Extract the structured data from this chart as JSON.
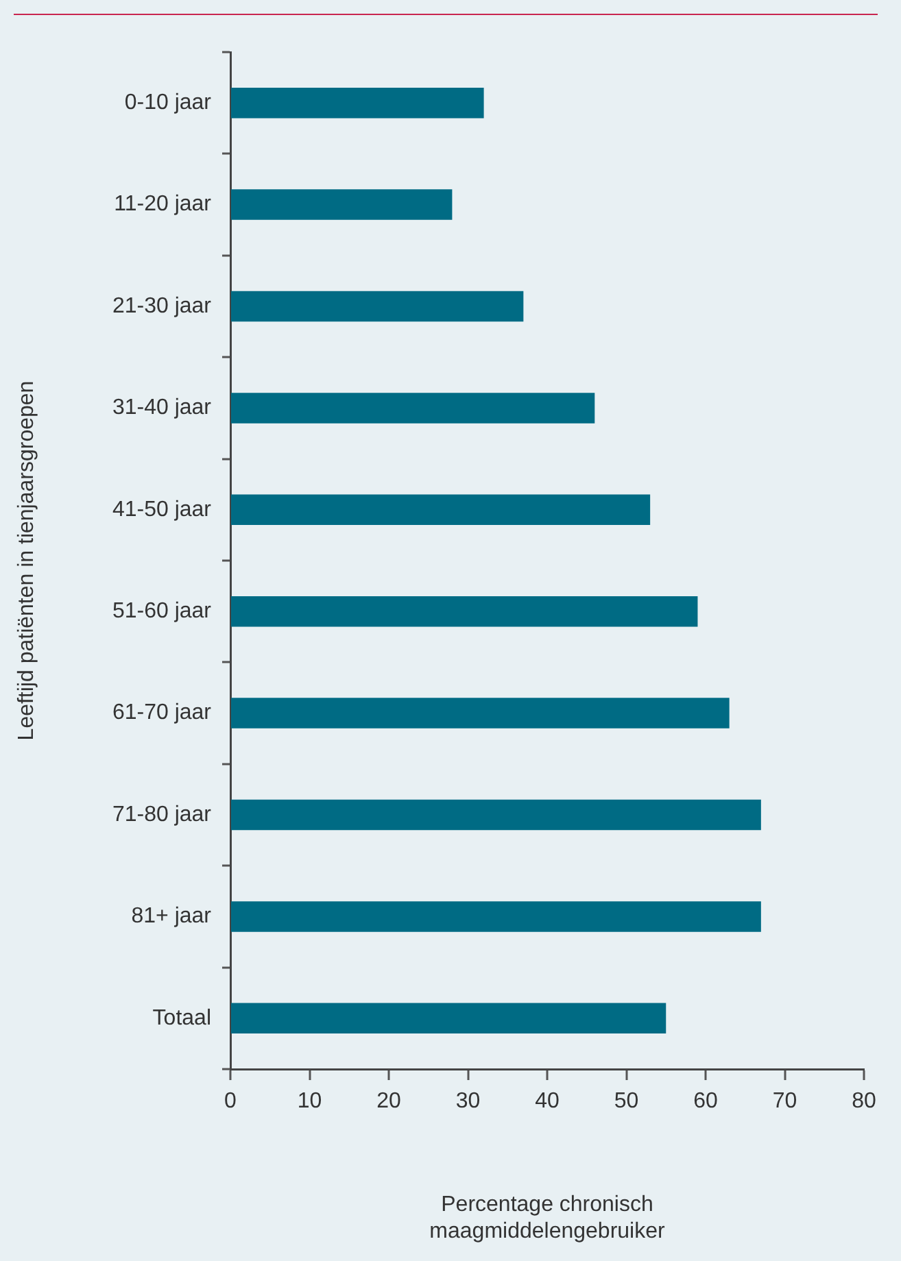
{
  "chart_data": {
    "type": "bar",
    "orientation": "horizontal",
    "xlabel": "Percentage chronisch maagmiddelengebruiker",
    "ylabel": "Leeftijd patiënten in tienjaarsgroepen",
    "categories": [
      "0-10 jaar",
      "11-20 jaar",
      "21-30 jaar",
      "31-40 jaar",
      "41-50 jaar",
      "51-60 jaar",
      "61-70 jaar",
      "71-80 jaar",
      "81+ jaar",
      "Totaal"
    ],
    "values": [
      32,
      28,
      37,
      46,
      53,
      59,
      63,
      67,
      67,
      55
    ],
    "color": "#006b84",
    "xlim": [
      0,
      80
    ],
    "xticks": [
      0,
      10,
      20,
      30,
      40,
      50,
      60,
      70,
      80
    ],
    "grid": false,
    "legend": false
  }
}
